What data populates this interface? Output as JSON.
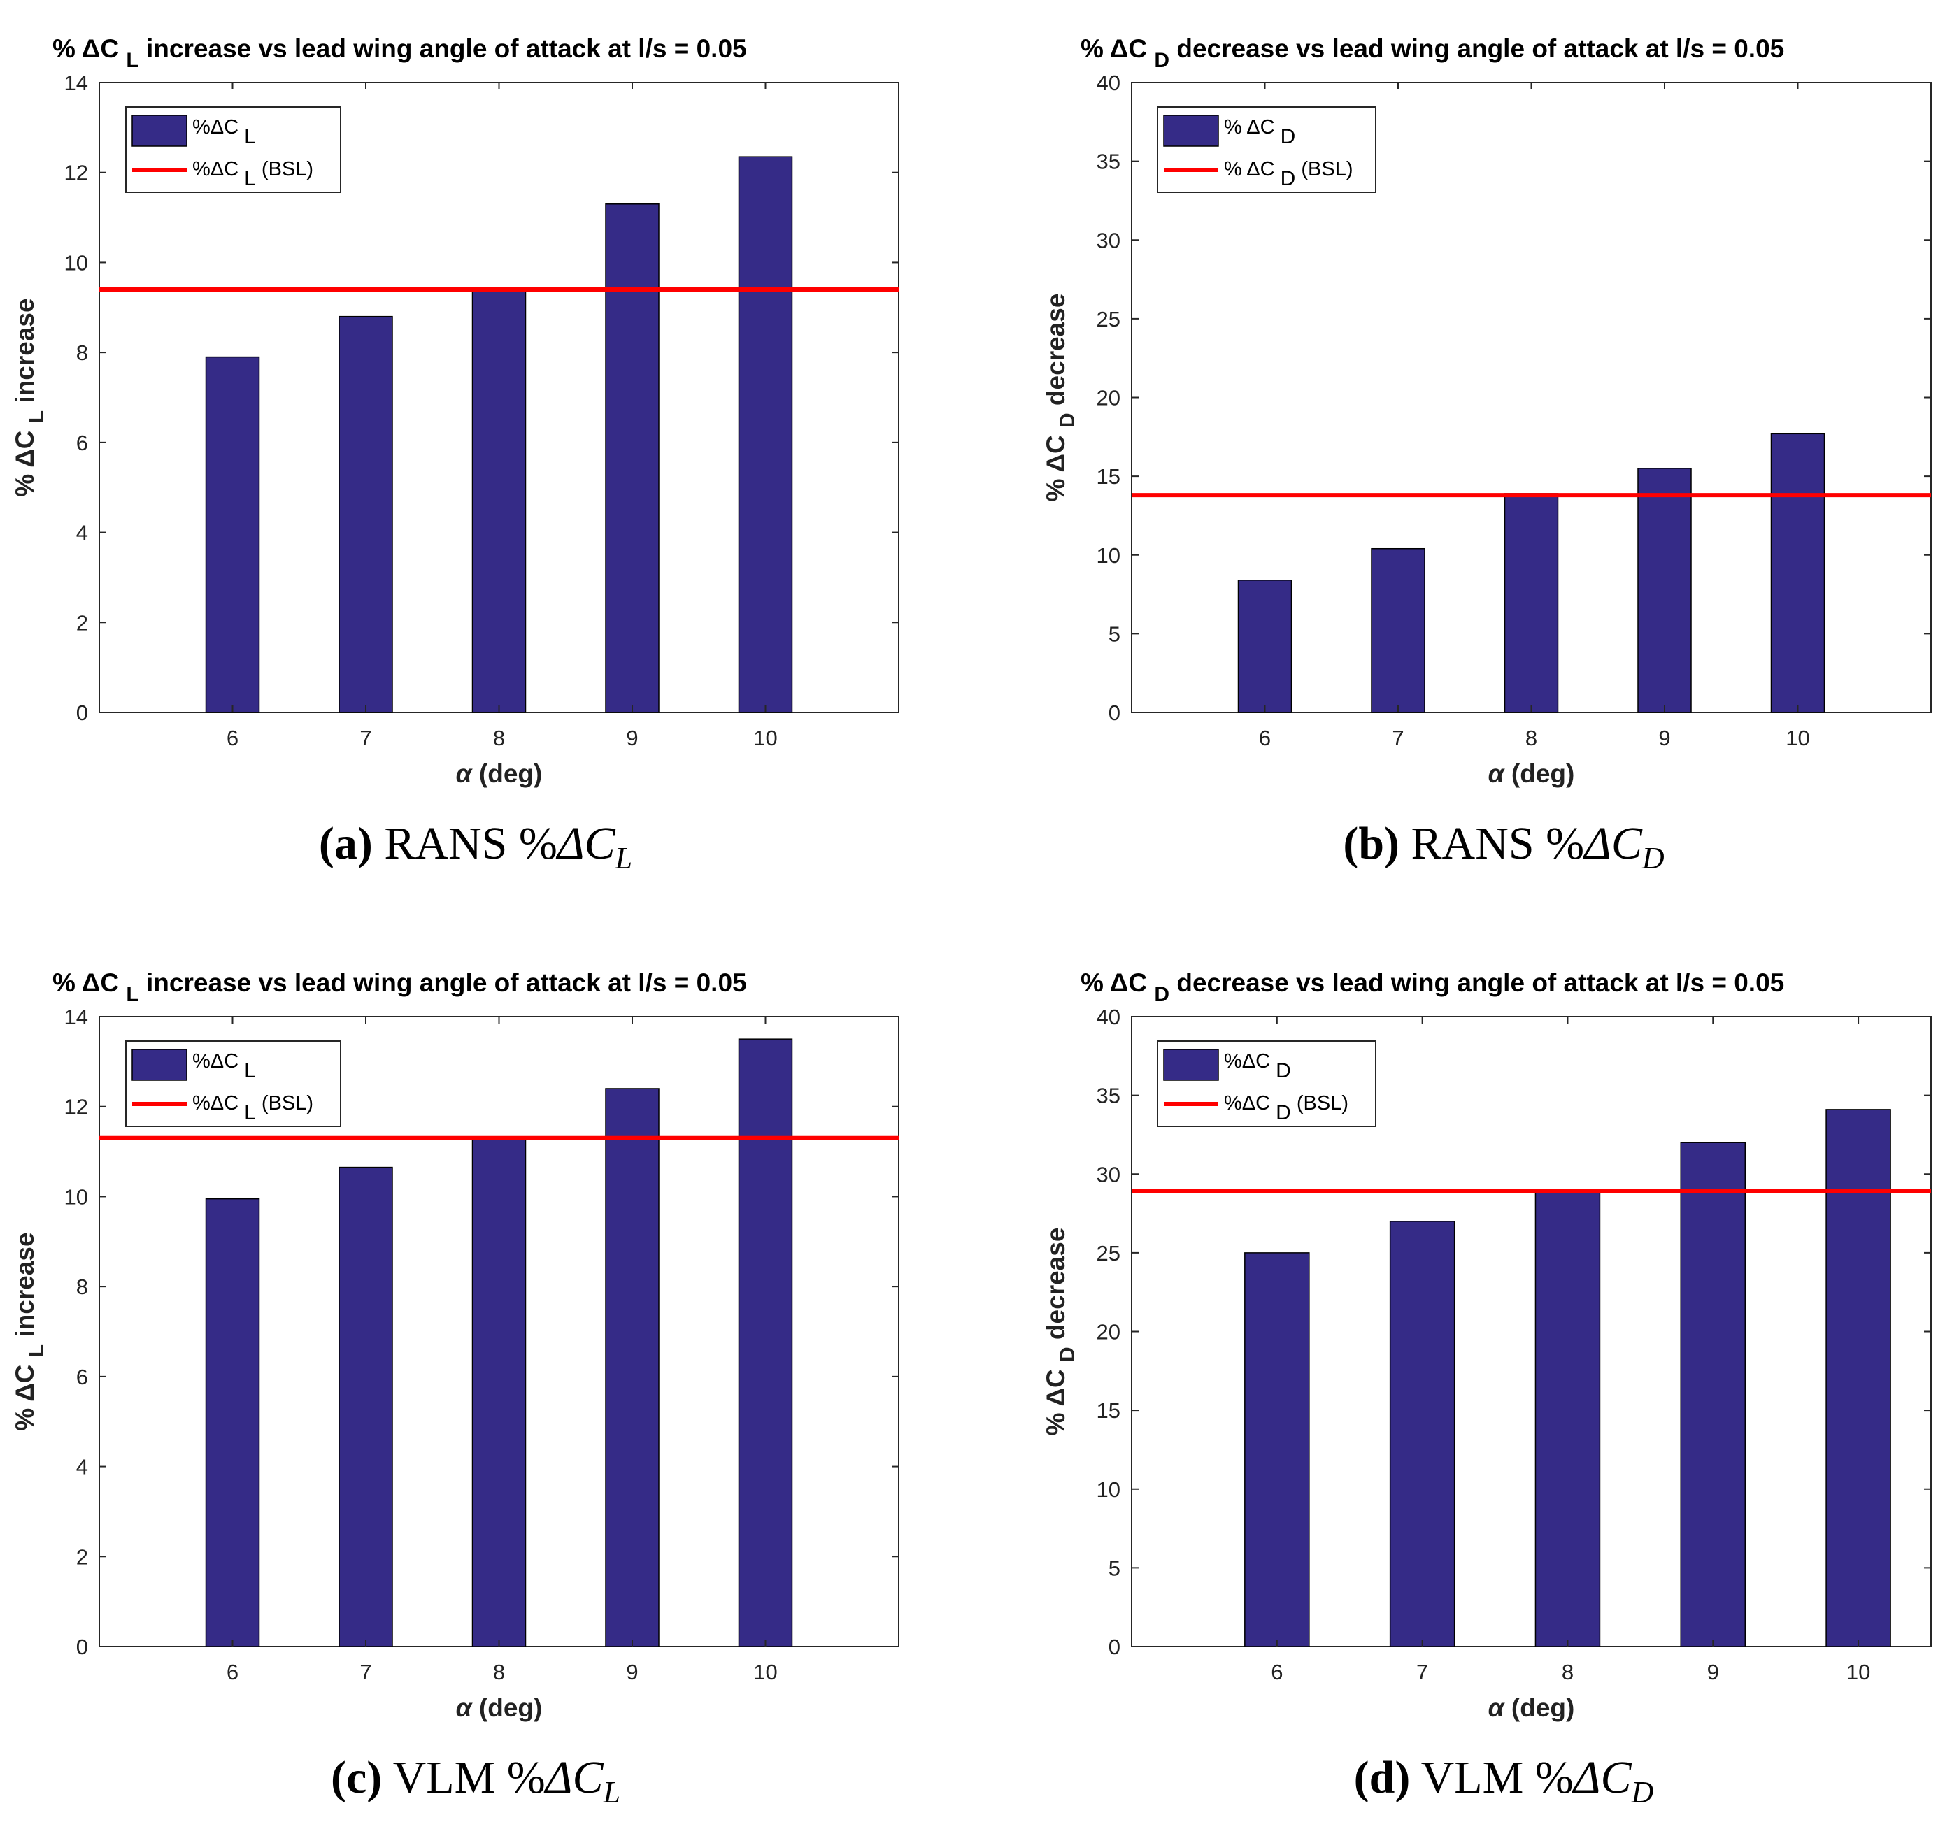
{
  "figure": {
    "panels": [
      {
        "id": "a",
        "title_parts": [
          "% ΔC ",
          "L",
          " increase vs lead wing angle of attack at l/s = 0.05"
        ],
        "ylabel_parts": [
          "% ΔC ",
          "L",
          " increase"
        ],
        "xlabel_sym": "α",
        "xlabel_rest": " (deg)",
        "legend": {
          "bar_prefix": "%ΔC ",
          "bar_sub": "L",
          "line_prefix": "%ΔC ",
          "line_sub": "L",
          "line_suffix": " (BSL)"
        },
        "caption": {
          "label": "(a)",
          "method": " RANS %",
          "delta": "ΔC",
          "sub": "L"
        }
      },
      {
        "id": "b",
        "title_parts": [
          "% ΔC ",
          "D",
          " decrease vs lead wing angle of attack at l/s = 0.05"
        ],
        "ylabel_parts": [
          "% ΔC ",
          "D",
          " decrease"
        ],
        "xlabel_sym": "α",
        "xlabel_rest": " (deg)",
        "legend": {
          "bar_prefix": "% ΔC ",
          "bar_sub": "D",
          "line_prefix": "% ΔC ",
          "line_sub": "D",
          "line_suffix": " (BSL)"
        },
        "caption": {
          "label": "(b)",
          "method": " RANS %",
          "delta": "ΔC",
          "sub": "D"
        }
      },
      {
        "id": "c",
        "title_parts": [
          "% ΔC ",
          "L",
          " increase vs lead wing angle of attack at l/s = 0.05"
        ],
        "ylabel_parts": [
          "% ΔC ",
          "L",
          " increase"
        ],
        "xlabel_sym": "α",
        "xlabel_rest": " (deg)",
        "legend": {
          "bar_prefix": "%ΔC ",
          "bar_sub": "L",
          "line_prefix": "%ΔC ",
          "line_sub": "L",
          "line_suffix": " (BSL)"
        },
        "caption": {
          "label": "(c)",
          "method": " VLM %",
          "delta": "ΔC",
          "sub": "L"
        }
      },
      {
        "id": "d",
        "title_parts": [
          "% ΔC ",
          "D",
          " decrease vs lead wing angle of attack at l/s = 0.05"
        ],
        "ylabel_parts": [
          "% ΔC ",
          "D",
          " decrease"
        ],
        "xlabel_sym": "α",
        "xlabel_rest": " (deg)",
        "legend": {
          "bar_prefix": "%ΔC ",
          "bar_sub": "D",
          "line_prefix": "%ΔC ",
          "line_sub": "D",
          "line_suffix": " (BSL)"
        },
        "caption": {
          "label": "(d)",
          "method": " VLM %",
          "delta": "ΔC",
          "sub": "D"
        }
      }
    ]
  },
  "chart_data": [
    {
      "type": "bar",
      "title": "% ΔC L increase vs lead wing angle of attack at l/s = 0.05",
      "xlabel": "α (deg)",
      "ylabel": "% ΔC L increase",
      "categories": [
        "6",
        "7",
        "8",
        "9",
        "10"
      ],
      "values": [
        7.9,
        8.8,
        9.4,
        11.3,
        12.35
      ],
      "xlim": [
        5,
        11
      ],
      "ylim": [
        0,
        14
      ],
      "yticks": [
        "0",
        "2",
        "4",
        "6",
        "8",
        "10",
        "12",
        "14"
      ],
      "reference_line": {
        "name": "%ΔC L (BSL)",
        "value": 9.4
      },
      "legend_position": "top-left",
      "bar_color": "#352b87",
      "line_color": "#ff0000"
    },
    {
      "type": "bar",
      "title": "% ΔC D decrease vs lead wing angle of attack at l/s = 0.05",
      "xlabel": "α (deg)",
      "ylabel": "% ΔC D decrease",
      "categories": [
        "6",
        "7",
        "8",
        "9",
        "10"
      ],
      "values": [
        8.4,
        10.4,
        13.9,
        15.5,
        17.7
      ],
      "xlim": [
        5,
        11
      ],
      "ylim": [
        0,
        40
      ],
      "yticks": [
        "0",
        "5",
        "10",
        "15",
        "20",
        "25",
        "30",
        "35",
        "40"
      ],
      "reference_line": {
        "name": "% ΔC D (BSL)",
        "value": 13.8
      },
      "legend_position": "top-left",
      "bar_color": "#352b87",
      "line_color": "#ff0000"
    },
    {
      "type": "bar",
      "title": "% ΔC L increase vs lead wing angle of attack at l/s = 0.05",
      "xlabel": "α (deg)",
      "ylabel": "% ΔC L increase",
      "categories": [
        "6",
        "7",
        "8",
        "9",
        "10"
      ],
      "values": [
        9.95,
        10.65,
        11.3,
        12.4,
        13.5
      ],
      "xlim": [
        5,
        11
      ],
      "ylim": [
        0,
        14
      ],
      "yticks": [
        "0",
        "2",
        "4",
        "6",
        "8",
        "10",
        "12",
        "14"
      ],
      "reference_line": {
        "name": "%ΔC L (BSL)",
        "value": 11.3
      },
      "legend_position": "top-left",
      "bar_color": "#352b87",
      "line_color": "#ff0000"
    },
    {
      "type": "bar",
      "title": "% ΔC D decrease vs lead wing angle of attack at l/s = 0.05",
      "xlabel": "α (deg)",
      "ylabel": "% ΔC D decrease",
      "categories": [
        "6",
        "7",
        "8",
        "9",
        "10"
      ],
      "values": [
        25.0,
        27.0,
        29.0,
        32.0,
        34.1
      ],
      "xlim": [
        5.0,
        10.5
      ],
      "ylim": [
        0,
        40
      ],
      "yticks": [
        "0",
        "5",
        "10",
        "15",
        "20",
        "25",
        "30",
        "35",
        "40"
      ],
      "reference_line": {
        "name": "%ΔC D (BSL)",
        "value": 28.9
      },
      "legend_position": "top-left",
      "bar_color": "#352b87",
      "line_color": "#ff0000"
    }
  ]
}
